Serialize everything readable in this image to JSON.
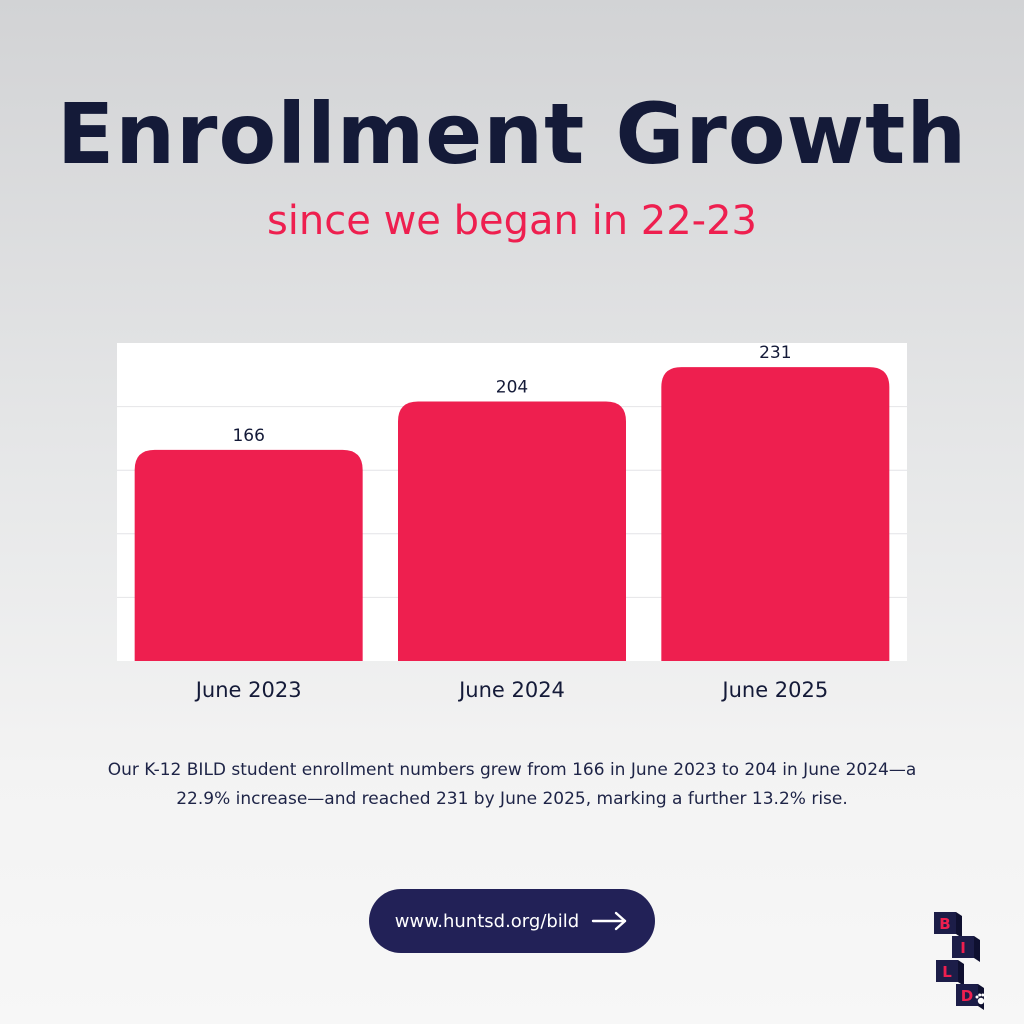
{
  "header": {
    "title": "Enrollment Growth",
    "subtitle": "since we began in 22-23"
  },
  "chart_data": {
    "type": "bar",
    "categories": [
      "June 2023",
      "June 2024",
      "June 2025"
    ],
    "values": [
      166,
      204,
      231
    ],
    "data_labels": [
      "166",
      "204",
      "231"
    ],
    "ylim": [
      0,
      250
    ],
    "grid": true,
    "bar_color": "#ee1f4f",
    "background_color": "#ffffff"
  },
  "caption": {
    "text": "Our K-12 BILD student enrollment numbers  grew from 166 in June 2023 to 204 in June 2024—a 22.9% increase—and reached 231 by June 2025, marking a further 13.2% rise."
  },
  "cta": {
    "url_label": "www.huntsd.org/bild",
    "icon": "arrow-right-icon"
  },
  "logo": {
    "letters": [
      "B",
      "I",
      "L",
      "D"
    ],
    "icon": "paw-icon",
    "colors": {
      "block": "#1c1d48",
      "letter": "#ee1f4f"
    }
  }
}
